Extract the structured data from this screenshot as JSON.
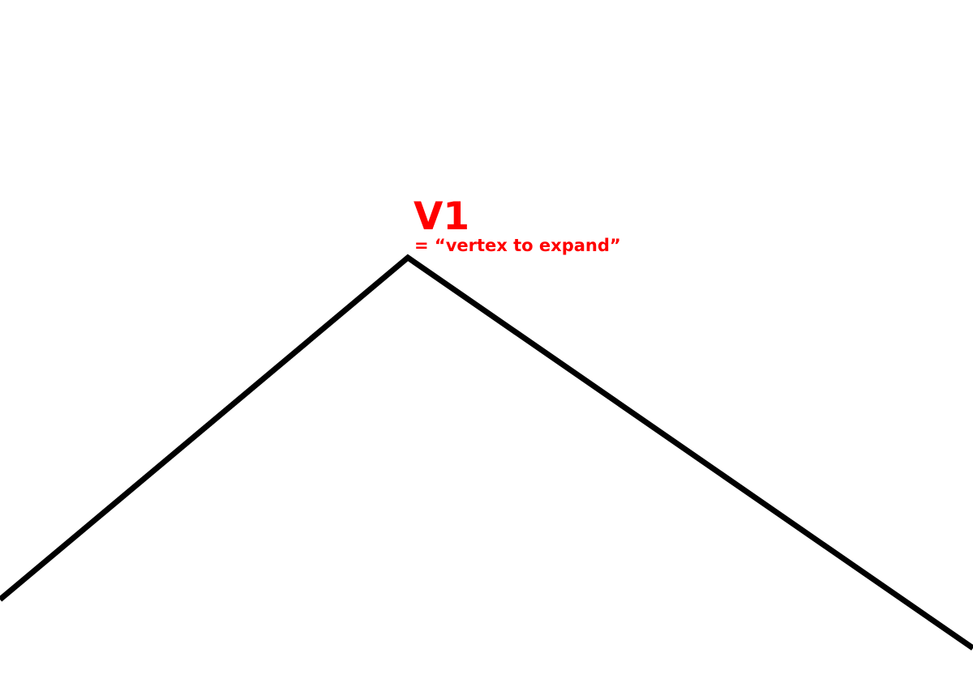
{
  "vertex": {
    "label": "V1",
    "caption": "= “vertex to expand”",
    "label_color": "#ff0000"
  },
  "edges": {
    "stroke_color": "#000000"
  }
}
